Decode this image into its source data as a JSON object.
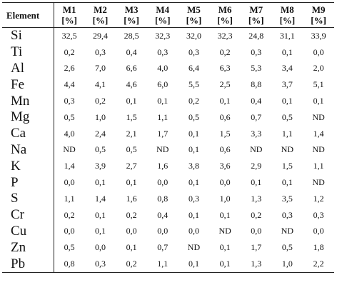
{
  "table": {
    "header_element": "Element",
    "unit": "[%]",
    "columns": [
      "M1",
      "M2",
      "M3",
      "M4",
      "M5",
      "M6",
      "M7",
      "M8",
      "M9"
    ],
    "rows": [
      {
        "element": "Si",
        "values": [
          "32,5",
          "29,4",
          "28,5",
          "32,3",
          "32,0",
          "32,3",
          "24,8",
          "31,1",
          "33,9"
        ]
      },
      {
        "element": "Ti",
        "values": [
          "0,2",
          "0,3",
          "0,4",
          "0,3",
          "0,3",
          "0,2",
          "0,3",
          "0,1",
          "0,0"
        ]
      },
      {
        "element": "Al",
        "values": [
          "2,6",
          "7,0",
          "6,6",
          "4,0",
          "6,4",
          "6,3",
          "5,3",
          "3,4",
          "2,0"
        ]
      },
      {
        "element": "Fe",
        "values": [
          "4,4",
          "4,1",
          "4,6",
          "6,0",
          "5,5",
          "2,5",
          "8,8",
          "3,7",
          "5,1"
        ]
      },
      {
        "element": "Mn",
        "values": [
          "0,3",
          "0,2",
          "0,1",
          "0,1",
          "0,2",
          "0,1",
          "0,4",
          "0,1",
          "0,1"
        ]
      },
      {
        "element": "Mg",
        "values": [
          "0,5",
          "1,0",
          "1,5",
          "1,1",
          "0,5",
          "0,6",
          "0,7",
          "0,5",
          "ND"
        ]
      },
      {
        "element": "Ca",
        "values": [
          "4,0",
          "2,4",
          "2,1",
          "1,7",
          "0,1",
          "1,5",
          "3,3",
          "1,1",
          "1,4"
        ]
      },
      {
        "element": "Na",
        "values": [
          "ND",
          "0,5",
          "0,5",
          "ND",
          "0,1",
          "0,6",
          "ND",
          "ND",
          "ND"
        ]
      },
      {
        "element": "K",
        "values": [
          "1,4",
          "3,9",
          "2,7",
          "1,6",
          "3,8",
          "3,6",
          "2,9",
          "1,5",
          "1,1"
        ]
      },
      {
        "element": "P",
        "values": [
          "0,0",
          "0,1",
          "0,1",
          "0,0",
          "0,1",
          "0,0",
          "0,1",
          "0,1",
          "ND"
        ]
      },
      {
        "element": "S",
        "values": [
          "1,1",
          "1,4",
          "1,6",
          "0,8",
          "0,3",
          "1,0",
          "1,3",
          "3,5",
          "1,2"
        ]
      },
      {
        "element": "Cr",
        "values": [
          "0,2",
          "0,1",
          "0,2",
          "0,4",
          "0,1",
          "0,1",
          "0,2",
          "0,3",
          "0,3"
        ]
      },
      {
        "element": "Cu",
        "values": [
          "0,0",
          "0,1",
          "0,0",
          "0,0",
          "0,0",
          "ND",
          "0,0",
          "ND",
          "0,0"
        ]
      },
      {
        "element": "Zn",
        "values": [
          "0,5",
          "0,0",
          "0,1",
          "0,7",
          "ND",
          "0,1",
          "1,7",
          "0,5",
          "1,8"
        ]
      },
      {
        "element": "Pb",
        "values": [
          "0,8",
          "0,3",
          "0,2",
          "1,1",
          "0,1",
          "0,1",
          "1,3",
          "1,0",
          "2,2"
        ]
      }
    ]
  }
}
